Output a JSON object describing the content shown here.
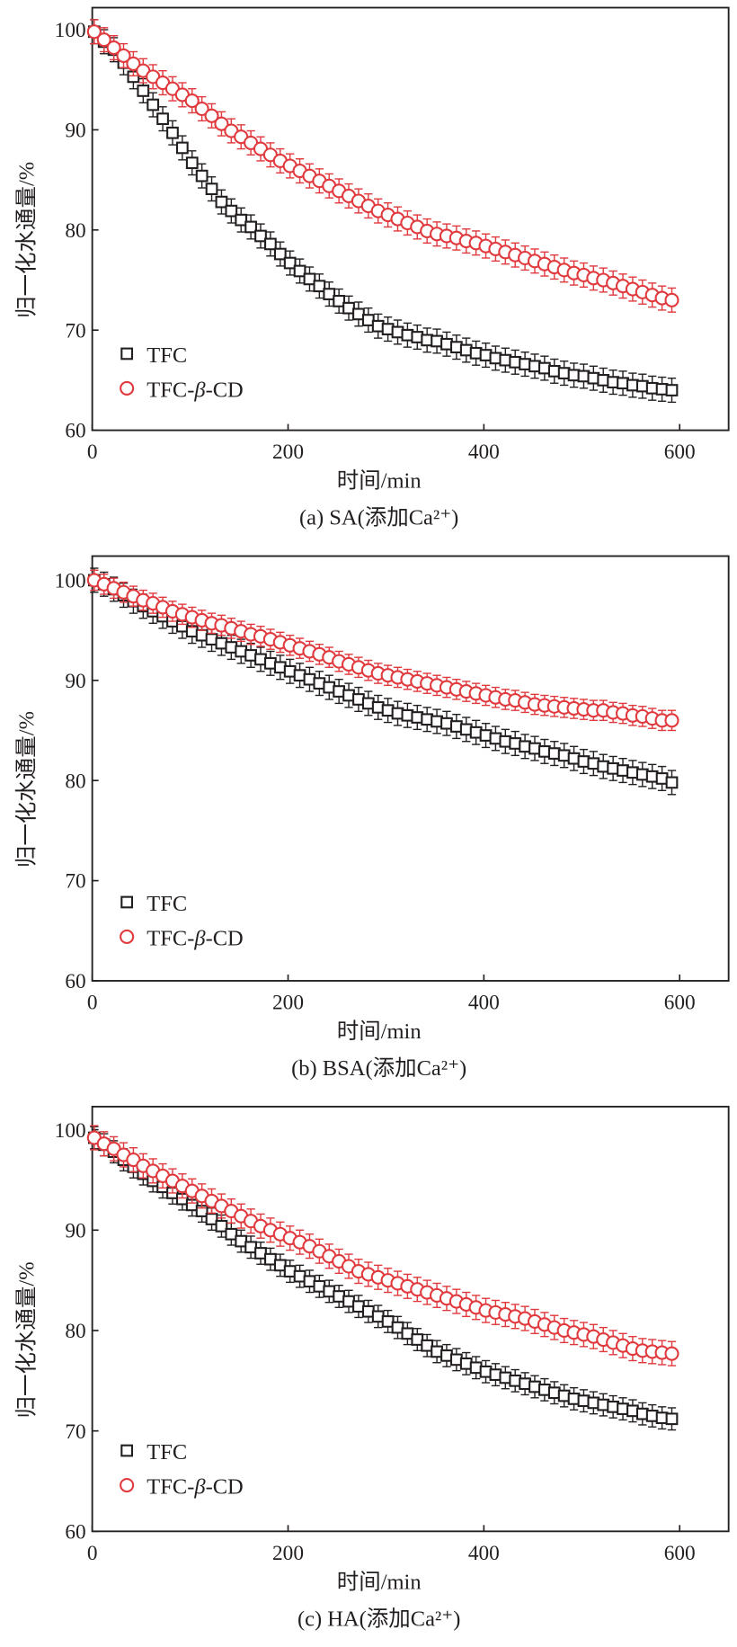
{
  "chart_data": [
    {
      "type": "scatter",
      "caption": "(a) SA(添加Ca²⁺)",
      "xlabel": "时间/min",
      "ylabel": "归一化水通量/%",
      "xlim": [
        0,
        650
      ],
      "ylim": [
        60,
        102
      ],
      "xticks": [
        "0",
        "200",
        "400",
        "600"
      ],
      "yticks": [
        "60",
        "70",
        "80",
        "90",
        "100"
      ],
      "legend_placement": "lower-left",
      "x": [
        2,
        12,
        22,
        32,
        42,
        52,
        62,
        72,
        82,
        92,
        102,
        112,
        122,
        132,
        142,
        152,
        162,
        172,
        182,
        192,
        202,
        212,
        222,
        232,
        242,
        252,
        262,
        272,
        282,
        292,
        302,
        312,
        322,
        332,
        342,
        352,
        362,
        372,
        382,
        392,
        402,
        412,
        422,
        432,
        442,
        452,
        462,
        472,
        482,
        492,
        502,
        512,
        522,
        532,
        542,
        552,
        562,
        572,
        582,
        592
      ],
      "series": [
        {
          "name": "TFC",
          "marker": "square",
          "color": "#231f20",
          "error": 1.2,
          "values": [
            99.8,
            98.8,
            98.0,
            96.7,
            95.3,
            93.9,
            92.5,
            91.1,
            89.7,
            88.2,
            86.7,
            85.4,
            84.1,
            82.8,
            81.9,
            81.0,
            80.3,
            79.4,
            78.6,
            77.6,
            76.7,
            75.9,
            75.1,
            74.4,
            73.6,
            72.9,
            72.2,
            71.6,
            71.0,
            70.4,
            70.1,
            69.8,
            69.5,
            69.3,
            69.0,
            68.9,
            68.6,
            68.3,
            68.0,
            67.7,
            67.5,
            67.2,
            67.0,
            66.8,
            66.6,
            66.4,
            66.2,
            65.9,
            65.7,
            65.5,
            65.4,
            65.2,
            65.0,
            64.8,
            64.7,
            64.5,
            64.4,
            64.2,
            64.1,
            64.0
          ]
        },
        {
          "name_prefix": "TFC-",
          "name_beta": "β",
          "name_suffix": "-CD",
          "marker": "circle",
          "color": "#e03a3e",
          "error": 1.2,
          "values": [
            99.8,
            99.0,
            98.2,
            97.4,
            96.6,
            95.9,
            95.3,
            94.7,
            94.1,
            93.5,
            92.9,
            92.1,
            91.4,
            90.6,
            89.9,
            89.3,
            88.7,
            88.1,
            87.5,
            86.9,
            86.4,
            85.9,
            85.4,
            84.9,
            84.4,
            83.9,
            83.4,
            82.9,
            82.4,
            81.9,
            81.5,
            81.1,
            80.7,
            80.3,
            79.9,
            79.6,
            79.4,
            79.2,
            78.9,
            78.7,
            78.4,
            78.1,
            77.8,
            77.5,
            77.2,
            76.9,
            76.6,
            76.3,
            76.0,
            75.7,
            75.5,
            75.2,
            75.0,
            74.7,
            74.4,
            74.1,
            73.8,
            73.5,
            73.2,
            73.0
          ]
        }
      ]
    },
    {
      "type": "scatter",
      "caption": "(b) BSA(添加Ca²⁺)",
      "xlabel": "时间/min",
      "ylabel": "归一化水通量/%",
      "xlim": [
        0,
        650
      ],
      "ylim": [
        60,
        102
      ],
      "xticks": [
        "0",
        "200",
        "400",
        "600"
      ],
      "yticks": [
        "60",
        "70",
        "80",
        "90",
        "100"
      ],
      "legend_placement": "lower-left",
      "x": [
        2,
        12,
        22,
        32,
        42,
        52,
        62,
        72,
        82,
        92,
        102,
        112,
        122,
        132,
        142,
        152,
        162,
        172,
        182,
        192,
        202,
        212,
        222,
        232,
        242,
        252,
        262,
        272,
        282,
        292,
        302,
        312,
        322,
        332,
        342,
        352,
        362,
        372,
        382,
        392,
        402,
        412,
        422,
        432,
        442,
        452,
        462,
        472,
        482,
        492,
        502,
        512,
        522,
        532,
        542,
        552,
        562,
        572,
        582,
        592
      ],
      "series": [
        {
          "name": "TFC",
          "marker": "square",
          "color": "#231f20",
          "error": 1.2,
          "values": [
            100,
            99.6,
            99.1,
            98.5,
            97.9,
            97.4,
            96.9,
            96.4,
            95.9,
            95.4,
            94.9,
            94.5,
            94.1,
            93.7,
            93.3,
            92.9,
            92.5,
            92.1,
            91.7,
            91.3,
            90.9,
            90.5,
            90.1,
            89.7,
            89.3,
            88.9,
            88.5,
            88.1,
            87.7,
            87.3,
            87.0,
            86.7,
            86.5,
            86.3,
            86.1,
            85.9,
            85.7,
            85.4,
            85.1,
            84.8,
            84.5,
            84.2,
            83.9,
            83.7,
            83.4,
            83.2,
            82.9,
            82.7,
            82.5,
            82.2,
            81.9,
            81.7,
            81.4,
            81.2,
            81.0,
            80.8,
            80.6,
            80.4,
            80.2,
            79.8
          ]
        },
        {
          "name_prefix": "TFC-",
          "name_beta": "β",
          "name_suffix": "-CD",
          "marker": "circle",
          "color": "#e03a3e",
          "error": 1.0,
          "values": [
            100,
            99.6,
            99.2,
            98.8,
            98.4,
            98.0,
            97.7,
            97.3,
            96.9,
            96.6,
            96.3,
            96.0,
            95.7,
            95.5,
            95.2,
            94.9,
            94.6,
            94.4,
            94.1,
            93.8,
            93.5,
            93.2,
            92.9,
            92.6,
            92.3,
            91.9,
            91.6,
            91.3,
            91.0,
            90.7,
            90.5,
            90.3,
            90.1,
            89.9,
            89.7,
            89.5,
            89.3,
            89.1,
            88.9,
            88.7,
            88.5,
            88.3,
            88.1,
            88.0,
            87.8,
            87.6,
            87.5,
            87.4,
            87.3,
            87.2,
            87.1,
            87.0,
            87.0,
            86.8,
            86.7,
            86.5,
            86.4,
            86.2,
            86.0,
            86.0
          ]
        }
      ]
    },
    {
      "type": "scatter",
      "caption": "(c) HA(添加Ca²⁺)",
      "xlabel": "时间/min",
      "ylabel": "归一化水通量/%",
      "xlim": [
        0,
        650
      ],
      "ylim": [
        60,
        102
      ],
      "xticks": [
        "0",
        "200",
        "400",
        "600"
      ],
      "yticks": [
        "60",
        "70",
        "80",
        "90",
        "100"
      ],
      "legend_placement": "lower-left",
      "x": [
        2,
        12,
        22,
        32,
        42,
        52,
        62,
        72,
        82,
        92,
        102,
        112,
        122,
        132,
        142,
        152,
        162,
        172,
        182,
        192,
        202,
        212,
        222,
        232,
        242,
        252,
        262,
        272,
        282,
        292,
        302,
        312,
        322,
        332,
        342,
        352,
        362,
        372,
        382,
        392,
        402,
        412,
        422,
        432,
        442,
        452,
        462,
        472,
        482,
        492,
        502,
        512,
        522,
        532,
        542,
        552,
        562,
        572,
        582,
        592
      ],
      "series": [
        {
          "name": "TFC",
          "marker": "square",
          "color": "#231f20",
          "error": 1.1,
          "values": [
            99.2,
            98.5,
            97.8,
            97.0,
            96.3,
            95.6,
            94.9,
            94.3,
            93.7,
            93.1,
            92.5,
            91.9,
            91.1,
            90.4,
            89.6,
            88.9,
            88.3,
            87.7,
            87.1,
            86.5,
            85.9,
            85.4,
            84.9,
            84.4,
            83.9,
            83.4,
            82.9,
            82.4,
            81.9,
            81.4,
            80.9,
            80.3,
            79.7,
            79.1,
            78.5,
            77.9,
            77.5,
            77.1,
            76.7,
            76.3,
            75.9,
            75.6,
            75.3,
            75.0,
            74.7,
            74.4,
            74.1,
            73.8,
            73.5,
            73.2,
            73.0,
            72.8,
            72.6,
            72.4,
            72.2,
            72.0,
            71.7,
            71.5,
            71.3,
            71.2
          ]
        },
        {
          "name_prefix": "TFC-",
          "name_beta": "β",
          "name_suffix": "-CD",
          "marker": "circle",
          "color": "#e03a3e",
          "error": 1.2,
          "values": [
            99.2,
            98.6,
            98.1,
            97.5,
            97.0,
            96.4,
            95.9,
            95.4,
            94.9,
            94.4,
            93.9,
            93.4,
            92.9,
            92.4,
            91.9,
            91.4,
            90.9,
            90.4,
            90.0,
            89.6,
            89.2,
            88.8,
            88.4,
            87.9,
            87.4,
            86.9,
            86.4,
            85.9,
            85.6,
            85.3,
            85.0,
            84.7,
            84.4,
            84.1,
            83.8,
            83.5,
            83.2,
            82.9,
            82.6,
            82.3,
            82.0,
            81.8,
            81.6,
            81.4,
            81.2,
            80.9,
            80.6,
            80.3,
            80.0,
            79.8,
            79.6,
            79.4,
            79.1,
            78.8,
            78.5,
            78.2,
            78.0,
            77.9,
            77.8,
            77.7
          ]
        }
      ]
    }
  ]
}
